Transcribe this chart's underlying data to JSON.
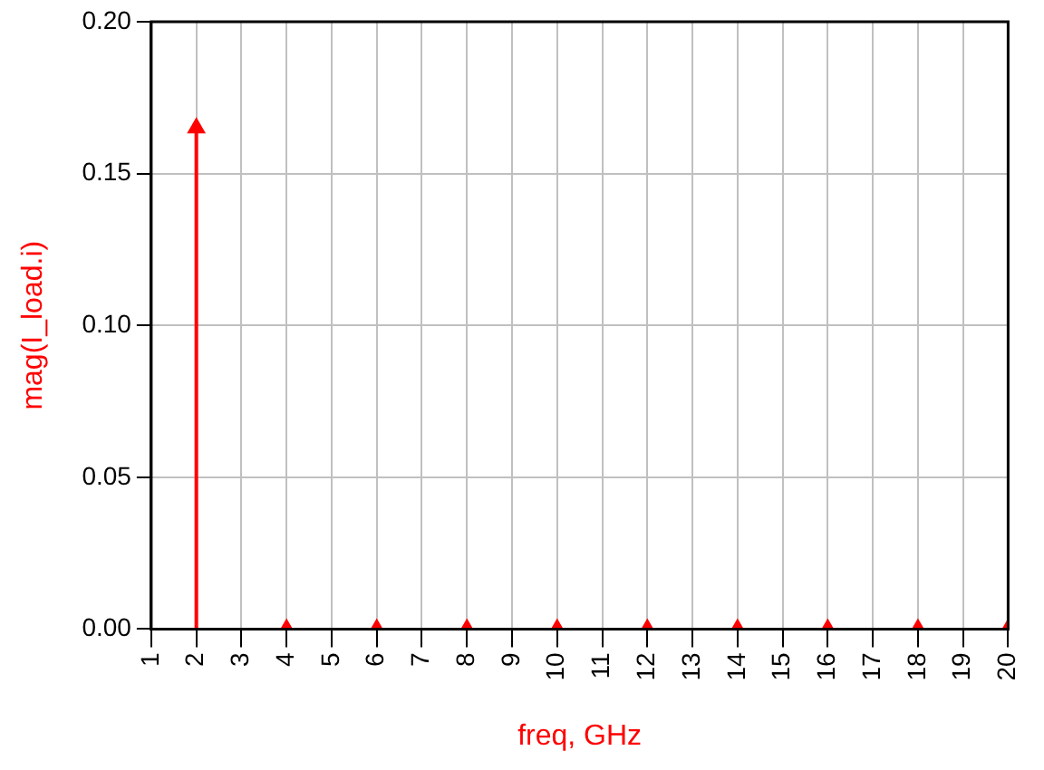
{
  "chart_data": {
    "type": "lollipop",
    "xlabel": "freq, GHz",
    "ylabel": "mag(I_load.i)",
    "x": [
      2,
      4,
      6,
      8,
      10,
      12,
      14,
      16,
      18,
      20
    ],
    "series": [
      {
        "color": "#ff0000",
        "values": [
          0.165,
          0,
          0,
          0,
          0,
          0,
          0,
          0,
          0,
          0
        ]
      }
    ],
    "xlim": [
      1,
      20
    ],
    "xticks": [
      1,
      2,
      3,
      4,
      5,
      6,
      7,
      8,
      9,
      10,
      11,
      12,
      13,
      14,
      15,
      16,
      17,
      18,
      19,
      20
    ],
    "ylim": [
      0,
      0.2
    ],
    "yticks": [
      {
        "value": 0,
        "label": "0.00"
      },
      0.05,
      {
        "value": 0.1,
        "label": "0.10"
      },
      0.15,
      {
        "value": 0.2,
        "label": "0.20"
      }
    ],
    "grid": true,
    "marker": "triangle",
    "legend": false
  }
}
